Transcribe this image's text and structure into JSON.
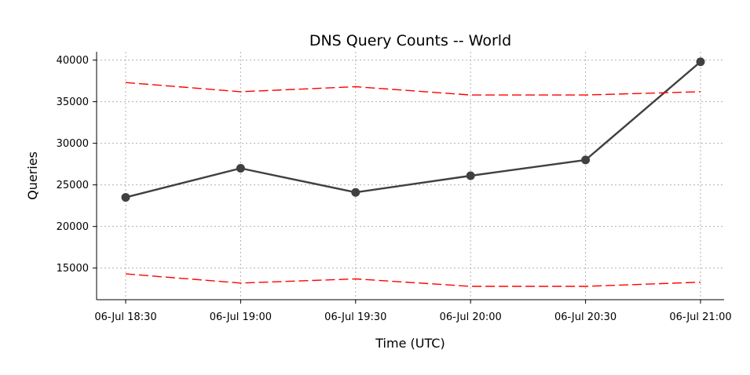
{
  "chart_data": {
    "type": "line",
    "title": "DNS Query Counts -- World",
    "xlabel": "Time (UTC)",
    "ylabel": "Queries",
    "categories": [
      "06-Jul 18:30",
      "06-Jul 19:00",
      "06-Jul 19:30",
      "06-Jul 20:00",
      "06-Jul 20:30",
      "06-Jul 21:00"
    ],
    "yticks": [
      15000,
      20000,
      25000,
      30000,
      35000,
      40000
    ],
    "ytick_labels": [
      "15000",
      "20000",
      "25000",
      "30000",
      "35000",
      "40000"
    ],
    "ylim": [
      11200,
      41000
    ],
    "grid": true,
    "legend": "none",
    "series": [
      {
        "values": [
          23500,
          27000,
          24100,
          26100,
          28000,
          39800
        ],
        "color": "#404040",
        "style": "solid",
        "markers": true
      },
      {
        "values": [
          37300,
          36200,
          36800,
          35800,
          35800,
          36200
        ],
        "color": "#ff0000",
        "style": "dashed",
        "markers": false
      },
      {
        "values": [
          14300,
          13200,
          13700,
          12800,
          12800,
          13300
        ],
        "color": "#ff0000",
        "style": "dashed",
        "markers": false
      }
    ]
  }
}
